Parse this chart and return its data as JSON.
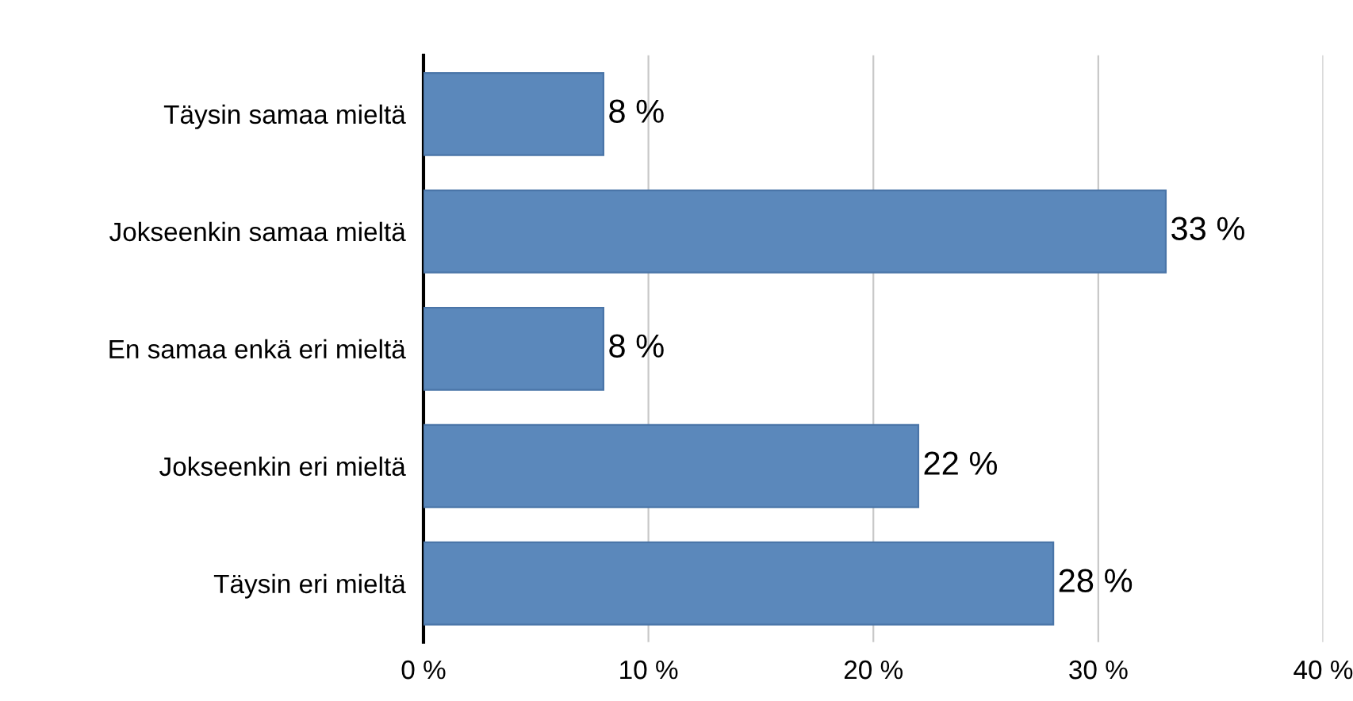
{
  "chart_data": {
    "type": "bar",
    "orientation": "horizontal",
    "categories": [
      "Täysin samaa mieltä",
      "Jokseenkin samaa mieltä",
      "En samaa enkä eri mieltä",
      "Jokseenkin eri mieltä",
      "Täysin eri mieltä"
    ],
    "values": [
      8,
      33,
      8,
      22,
      28
    ],
    "value_labels": [
      "8 %",
      "33 %",
      "8 %",
      "22 %",
      "28 %"
    ],
    "color": "#5b88bb",
    "xlim": [
      0,
      40
    ],
    "xticks": [
      {
        "value": 0,
        "label": "0 %"
      },
      {
        "value": 10,
        "label": "10 %"
      },
      {
        "value": 20,
        "label": "20 %"
      },
      {
        "value": 30,
        "label": "30 %"
      },
      {
        "value": 40,
        "label": "40 %"
      }
    ],
    "grid": "x",
    "legend": false
  }
}
